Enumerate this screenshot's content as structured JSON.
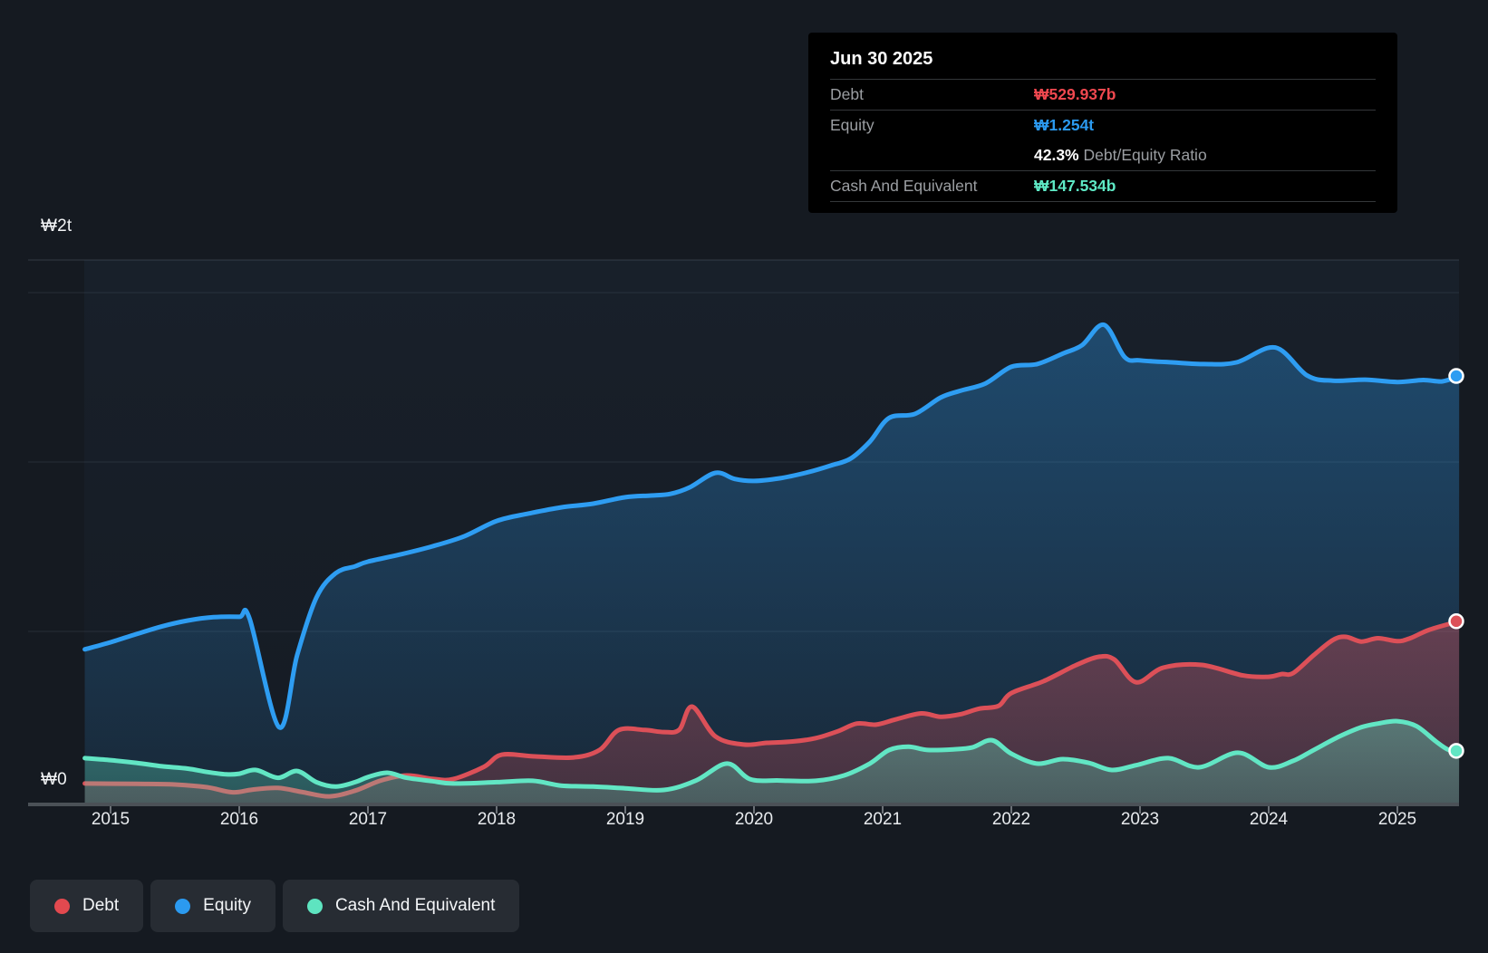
{
  "y_axis": {
    "top_label": "₩2t",
    "zero_label": "₩0"
  },
  "tooltip": {
    "title": "Jun 30 2025",
    "debt_label": "Debt",
    "debt_value": "₩529.937b",
    "equity_label": "Equity",
    "equity_value": "₩1.254t",
    "ratio_value": "42.3%",
    "ratio_label": "Debt/Equity Ratio",
    "cash_label": "Cash And Equivalent",
    "cash_value": "₩147.534b"
  },
  "legend": {
    "items": [
      {
        "label": "Debt",
        "color": "#e2494f"
      },
      {
        "label": "Equity",
        "color": "#2b9af0"
      },
      {
        "label": "Cash And Equivalent",
        "color": "#5ee4c0"
      }
    ]
  },
  "chart_data": {
    "type": "area",
    "x_unit": "decimal_year",
    "x_range": [
      2014.8,
      2025.48
    ],
    "ylim_b": [
      0,
      2000
    ],
    "y_axis_labels": [
      "₩0",
      "₩2t"
    ],
    "y_gridlines_b": [
      500,
      1000,
      1500
    ],
    "grid": true,
    "legend_position": "bottom-left",
    "end_markers": true,
    "x_ticks": [
      {
        "year": 2015,
        "label": "2015"
      },
      {
        "year": 2016,
        "label": "2016"
      },
      {
        "year": 2017,
        "label": "2017"
      },
      {
        "year": 2018,
        "label": "2018"
      },
      {
        "year": 2019,
        "label": "2019"
      },
      {
        "year": 2020,
        "label": "2020"
      },
      {
        "year": 2021,
        "label": "2021"
      },
      {
        "year": 2022,
        "label": "2022"
      },
      {
        "year": 2023,
        "label": "2023"
      },
      {
        "year": 2024,
        "label": "2024"
      },
      {
        "year": 2025,
        "label": "2025"
      }
    ],
    "series": [
      {
        "name": "Equity",
        "color": "#2e9df2",
        "x": [
          2014.8,
          2015.0,
          2015.2,
          2015.4,
          2015.6,
          2015.8,
          2016.0,
          2016.08,
          2016.31,
          2016.45,
          2016.6,
          2016.75,
          2016.9,
          2017.0,
          2017.25,
          2017.5,
          2017.75,
          2018.0,
          2018.25,
          2018.5,
          2018.75,
          2019.0,
          2019.2,
          2019.35,
          2019.5,
          2019.7,
          2019.85,
          2020.0,
          2020.2,
          2020.4,
          2020.6,
          2020.75,
          2020.9,
          2021.05,
          2021.25,
          2021.45,
          2021.6,
          2021.8,
          2022.0,
          2022.2,
          2022.4,
          2022.55,
          2022.72,
          2022.88,
          2023.0,
          2023.25,
          2023.5,
          2023.75,
          2024.05,
          2024.3,
          2024.5,
          2024.75,
          2025.0,
          2025.2,
          2025.35,
          2025.48
        ],
        "values_b": [
          447,
          468,
          492,
          515,
          532,
          542,
          543,
          538,
          217,
          430,
          600,
          672,
          692,
          706,
          727,
          751,
          781,
          826,
          848,
          866,
          877,
          896,
          901,
          906,
          925,
          968,
          950,
          944,
          952,
          968,
          990,
          1010,
          1060,
          1130,
          1142,
          1190,
          1210,
          1232,
          1281,
          1289,
          1320,
          1345,
          1405,
          1310,
          1300,
          1294,
          1289,
          1294,
          1338,
          1255,
          1240,
          1243,
          1236,
          1242,
          1238,
          1254
        ]
      },
      {
        "name": "Debt",
        "color": "#dc5058",
        "x": [
          2014.8,
          2015.2,
          2015.5,
          2015.75,
          2015.95,
          2016.1,
          2016.3,
          2016.5,
          2016.7,
          2016.9,
          2017.1,
          2017.3,
          2017.5,
          2017.66,
          2017.9,
          2018.04,
          2018.3,
          2018.6,
          2018.8,
          2018.95,
          2019.15,
          2019.3,
          2019.42,
          2019.52,
          2019.7,
          2019.92,
          2020.1,
          2020.3,
          2020.48,
          2020.65,
          2020.8,
          2020.95,
          2021.1,
          2021.3,
          2021.45,
          2021.6,
          2021.75,
          2021.9,
          2022.0,
          2022.25,
          2022.5,
          2022.68,
          2022.8,
          2022.97,
          2023.18,
          2023.48,
          2023.8,
          2024.0,
          2024.1,
          2024.19,
          2024.35,
          2024.5,
          2024.6,
          2024.72,
          2024.85,
          2025.0,
          2025.1,
          2025.25,
          2025.48
        ],
        "values_b": [
          51,
          50,
          48,
          40,
          25,
          33,
          38,
          25,
          13,
          30,
          60,
          75,
          65,
          64,
          100,
          136,
          131,
          128,
          150,
          209,
          209,
          203,
          210,
          278,
          190,
          166,
          171,
          175,
          185,
          205,
          228,
          225,
          240,
          258,
          248,
          255,
          272,
          280,
          318,
          353,
          400,
          425,
          417,
          350,
          393,
          401,
          370,
          366,
          374,
          377,
          430,
          475,
          484,
          470,
          480,
          471,
          480,
          505,
          530
        ]
      },
      {
        "name": "Cash And Equivalent",
        "color": "#62e6c4",
        "x": [
          2014.8,
          2015.0,
          2015.2,
          2015.4,
          2015.6,
          2015.75,
          2015.9,
          2016.0,
          2016.13,
          2016.3,
          2016.45,
          2016.6,
          2016.75,
          2016.9,
          2017.0,
          2017.15,
          2017.3,
          2017.5,
          2017.66,
          2018.0,
          2018.28,
          2018.5,
          2018.75,
          2019.0,
          2019.3,
          2019.55,
          2019.79,
          2019.97,
          2020.2,
          2020.48,
          2020.7,
          2020.9,
          2021.05,
          2021.2,
          2021.35,
          2021.55,
          2021.7,
          2021.85,
          2022.0,
          2022.2,
          2022.4,
          2022.6,
          2022.78,
          2022.97,
          2023.22,
          2023.46,
          2023.76,
          2024.0,
          2024.19,
          2024.35,
          2024.55,
          2024.72,
          2024.85,
          2025.0,
          2025.15,
          2025.3,
          2025.4,
          2025.48
        ],
        "values_b": [
          126,
          120,
          112,
          102,
          95,
          85,
          78,
          80,
          91,
          68,
          88,
          55,
          42,
          55,
          70,
          83,
          68,
          58,
          51,
          55,
          59,
          45,
          42,
          37,
          32,
          60,
          110,
          64,
          60,
          59,
          75,
          110,
          150,
          160,
          150,
          152,
          158,
          179,
          139,
          110,
          123,
          112,
          91,
          105,
          126,
          99,
          142,
          99,
          118,
          150,
          190,
          217,
          228,
          235,
          220,
          175,
          150,
          147.5
        ]
      }
    ],
    "latest": {
      "date": "Jun 30 2025",
      "debt_b": 529.937,
      "equity_b": 1254,
      "cash_b": 147.534,
      "debt_equity_ratio_pct": 42.3
    }
  }
}
